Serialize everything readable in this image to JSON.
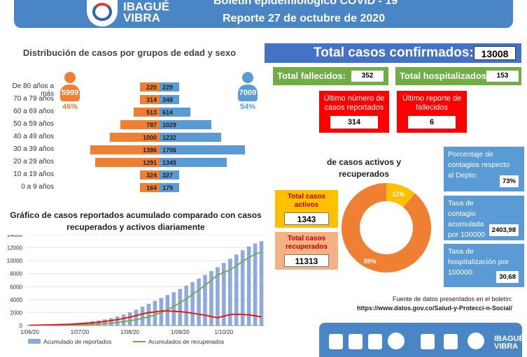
{
  "header": {
    "logo_text_line1": "IBAGUÉ",
    "logo_text_line2": "VIBRA",
    "title": "Boletín epidemiológico COVID - 19",
    "subtitle": "Reporte 27 de octubre de 2020"
  },
  "pyramid": {
    "title": "Distribución de casos por grupos de edad y sexo",
    "female_total": "5999",
    "female_pct": "46%",
    "male_total": "7009",
    "male_pct": "54%",
    "groups": [
      {
        "label": "De 80 años a más",
        "female": 220,
        "male": 229
      },
      {
        "label": "70 a 79 años",
        "female": 314,
        "male": 348
      },
      {
        "label": "60 a 69 años",
        "female": 513,
        "male": 614
      },
      {
        "label": "50 a 59 años",
        "female": 787,
        "male": 1029
      },
      {
        "label": "40 a 49 años",
        "female": 1000,
        "male": 1232
      },
      {
        "label": "30 a 39 años",
        "female": 1386,
        "male": 1706
      },
      {
        "label": "20 a 29 años",
        "female": 1291,
        "male": 1345
      },
      {
        "label": "10 a 19 años",
        "female": 324,
        "male": 327
      },
      {
        "label": "0 a 9 años",
        "female": 164,
        "male": 179
      }
    ],
    "colors": {
      "female": "#ee7f33",
      "male": "#5b9bd5"
    }
  },
  "kpis": {
    "total_label": "Total casos confirmados:",
    "total_value": "13008",
    "deaths_label": "Total fallecidos:",
    "deaths_value": "352",
    "hosp_label": "Total hospitalizados:",
    "hosp_value": "153",
    "last_cases_label": "Último número de casos reportados",
    "last_cases_value": "314",
    "last_deaths_label": "Último reporte de fallecidos",
    "last_deaths_value": "6"
  },
  "donut": {
    "title": "de casos activos y recuperados",
    "active_label": "Total casos activos",
    "active_value": "1343",
    "recovered_label": "Total casos recuperados",
    "recovered_value": "11313",
    "slice_recovered_label": "89%",
    "slice_active_label": "11%",
    "colors": {
      "recovered": "#ee7f33",
      "active": "#ffc000"
    }
  },
  "indicators": {
    "pct_label": "Porcentaje de contagios respecto al Depto:",
    "pct_value": "73%",
    "rate_label": "Tasa de contagio acumulada por 100000",
    "rate_value": "2403,98",
    "hosp_rate_label": "Tasa de hospitalización por 100000",
    "hosp_rate_value": "30,68"
  },
  "source": {
    "line1": "Fuente de datos presentados en el boletín:",
    "line2": "https://www.datos.gov.co/Salud-y-Protecci-n-Social/"
  },
  "chart_data": [
    {
      "type": "bar",
      "title": "Gráfico de casos reportados acumulado comparado con casos recuperados y activos diariamente",
      "ylim": [
        0,
        14000
      ],
      "yticks": [
        0,
        2000,
        4000,
        6000,
        8000,
        10000,
        12000,
        14000
      ],
      "x_tick_labels": [
        "1/06/20",
        "1/07/20",
        "1/08/20",
        "1/09/20",
        "1/10/20"
      ],
      "x": [
        "1/06/20",
        "5/06/20",
        "9/06/20",
        "13/06/20",
        "17/06/20",
        "21/06/20",
        "25/06/20",
        "29/06/20",
        "3/07/20",
        "7/07/20",
        "11/07/20",
        "15/07/20",
        "19/07/20",
        "23/07/20",
        "27/07/20",
        "31/07/20",
        "4/08/20",
        "8/08/20",
        "12/08/20",
        "16/08/20",
        "20/08/20",
        "24/08/20",
        "28/08/20",
        "1/09/20",
        "5/09/20",
        "9/09/20",
        "13/09/20",
        "17/09/20",
        "21/09/20",
        "25/09/20",
        "29/09/20",
        "3/10/20",
        "7/10/20",
        "11/10/20",
        "15/10/20",
        "19/10/20",
        "23/10/20",
        "27/10/20"
      ],
      "series": [
        {
          "name": "Acumulado de reportados",
          "kind": "bar",
          "color": "#8eaadb",
          "values": [
            80,
            100,
            130,
            160,
            190,
            230,
            280,
            340,
            420,
            520,
            640,
            780,
            950,
            1150,
            1400,
            1700,
            2050,
            2450,
            2900,
            3350,
            3800,
            4250,
            4700,
            5150,
            5650,
            6150,
            6700,
            7250,
            7800,
            8400,
            9000,
            9650,
            10300,
            10950,
            11600,
            12200,
            12650,
            13008
          ]
        },
        {
          "name": "Acumulados de recuperados",
          "kind": "line",
          "color": "#70ad47",
          "values": [
            20,
            30,
            40,
            50,
            60,
            70,
            90,
            110,
            130,
            160,
            200,
            250,
            300,
            380,
            480,
            600,
            750,
            900,
            1100,
            1350,
            1650,
            2000,
            2450,
            2950,
            3500,
            4100,
            4800,
            5500,
            6200,
            7000,
            7800,
            8200,
            8600,
            9200,
            9900,
            10500,
            11000,
            11313
          ]
        },
        {
          "name": "",
          "kind": "line",
          "color": "#ff0000",
          "values": [
            60,
            70,
            90,
            110,
            130,
            160,
            190,
            230,
            290,
            360,
            440,
            530,
            650,
            770,
            920,
            1100,
            1300,
            1550,
            1800,
            2000,
            2100,
            2250,
            2250,
            2200,
            2150,
            2050,
            1900,
            1750,
            1600,
            1400,
            1200,
            1450,
            1700,
            1750,
            1700,
            1650,
            1500,
            1343
          ]
        }
      ]
    },
    {
      "type": "pie",
      "categories": [
        "Recuperados",
        "Activos"
      ],
      "values": [
        89,
        11
      ]
    }
  ]
}
